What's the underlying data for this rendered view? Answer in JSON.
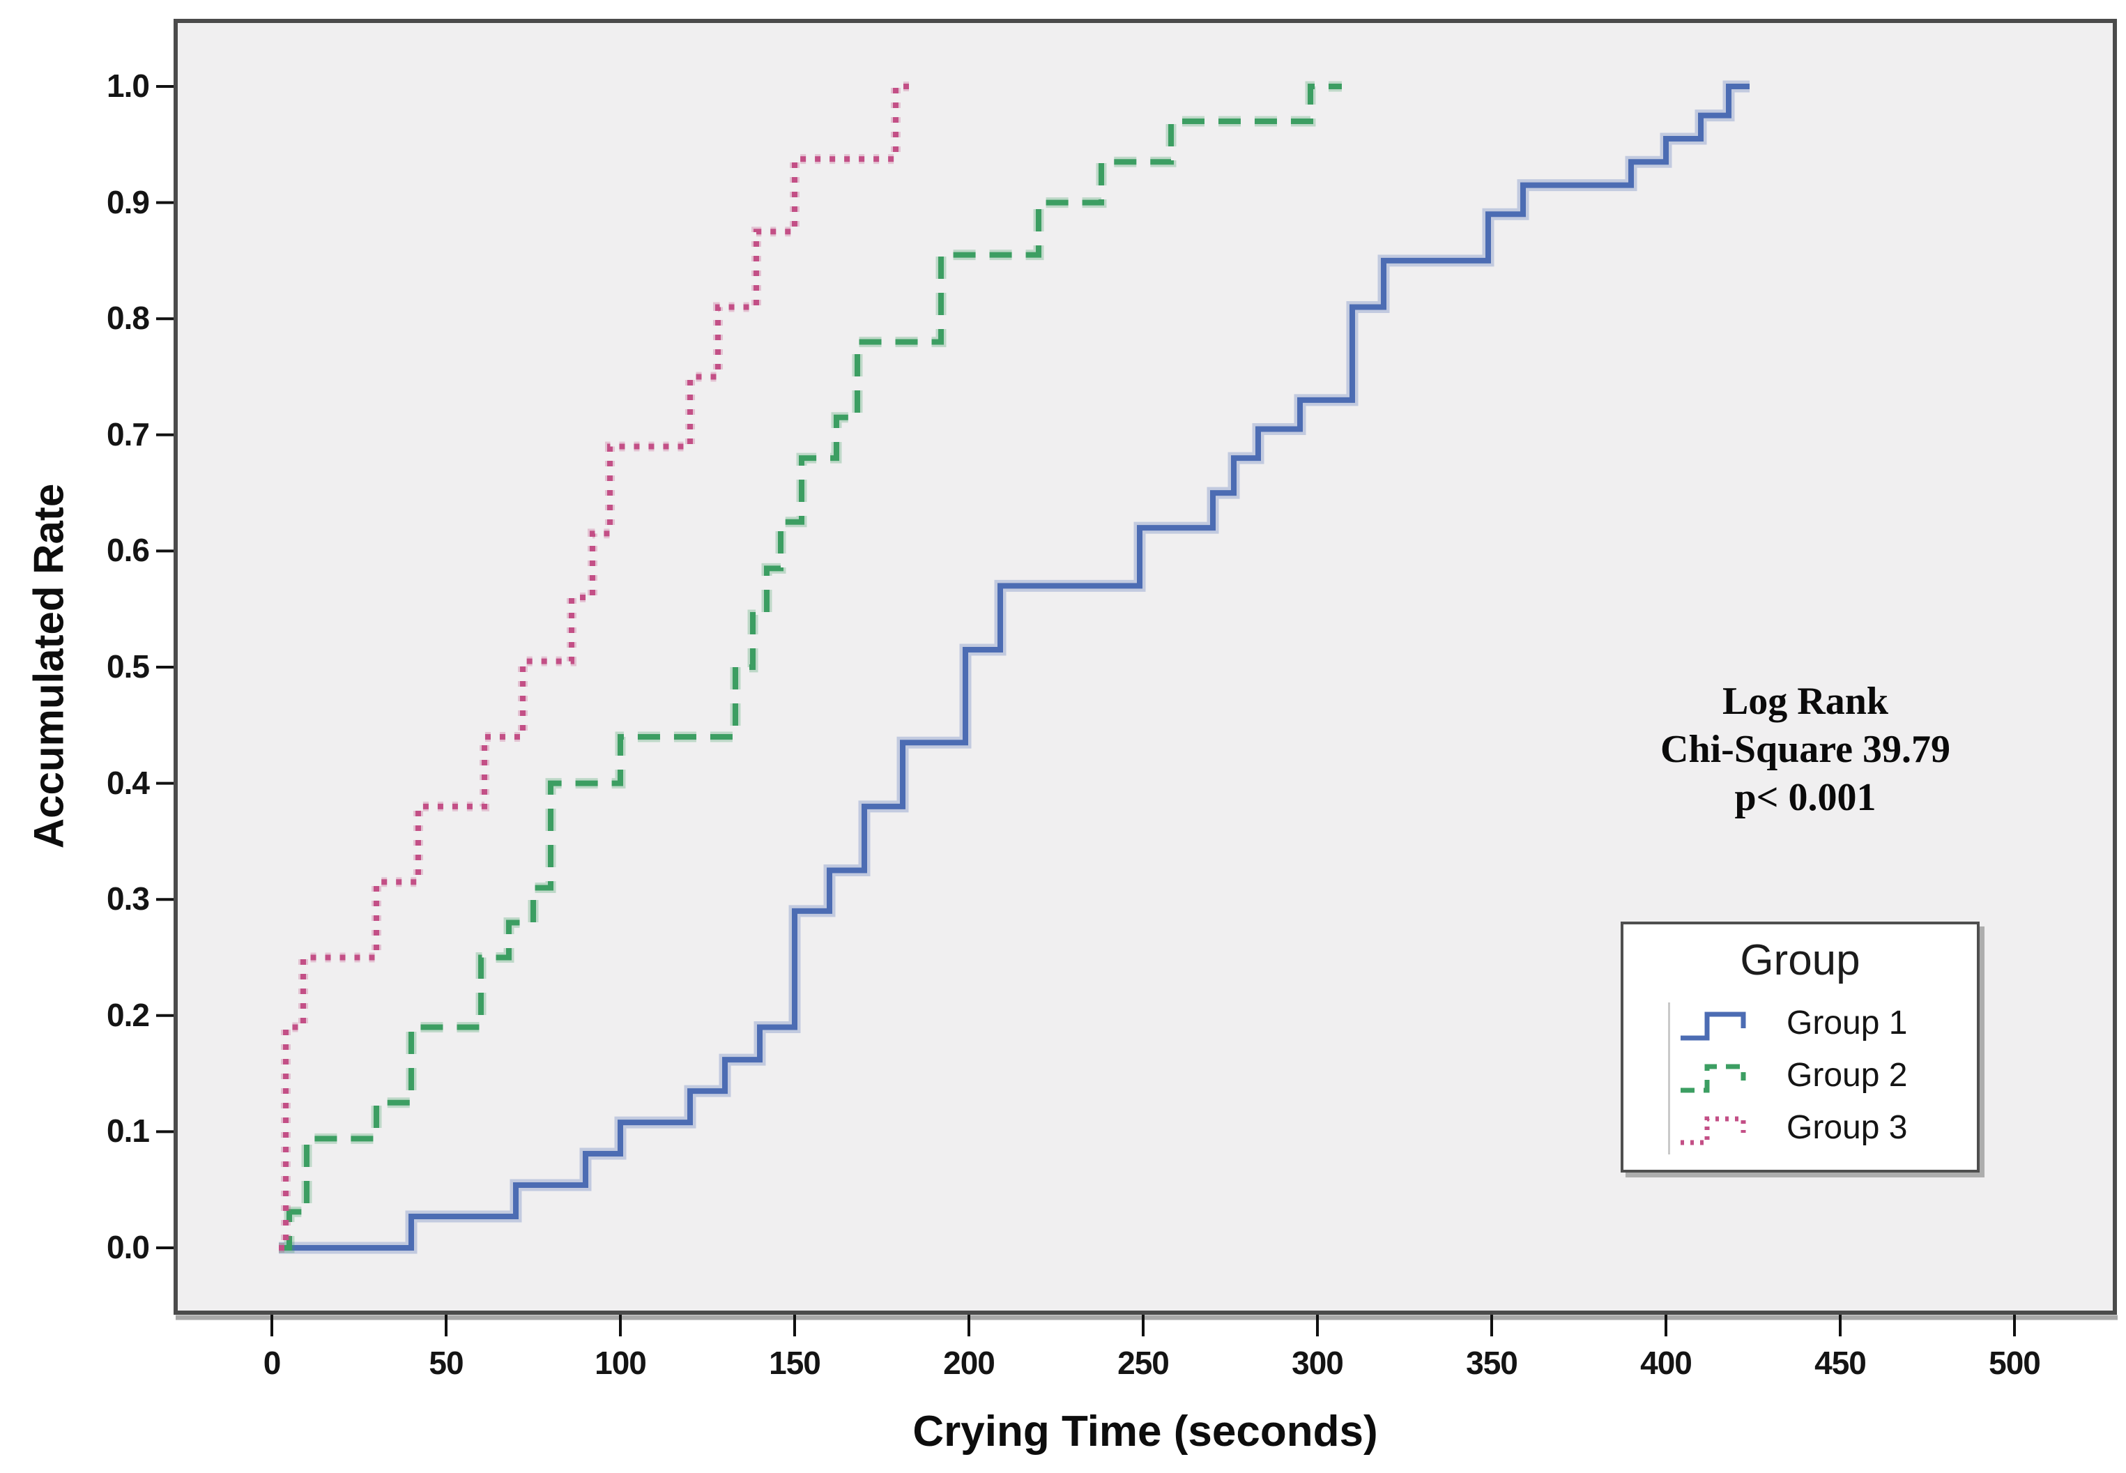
{
  "figure": {
    "x_axis_title": "Crying Time (seconds)",
    "y_axis_title": "Accumulated Rate",
    "plot_background": "#f0eff0",
    "frame_color": "#4b4b4b"
  },
  "annotation": {
    "line1": "Log Rank",
    "line2": "Chi-Square 39.79",
    "line3": "p< 0.001"
  },
  "legend": {
    "title": "Group",
    "items": [
      {
        "label": "Group 1",
        "color": "#4c6cb3",
        "style": "solid"
      },
      {
        "label": "Group 2",
        "color": "#3c9e62",
        "style": "dashed"
      },
      {
        "label": "Group 3",
        "color": "#c34f86",
        "style": "dotted"
      }
    ]
  },
  "chart_data": {
    "type": "step",
    "title": "",
    "xlabel": "Crying Time (seconds)",
    "ylabel": "Accumulated Rate",
    "xlim": [
      -28,
      529
    ],
    "ylim": [
      -0.056,
      1.056
    ],
    "x_ticks": [
      0,
      50,
      100,
      150,
      200,
      250,
      300,
      350,
      400,
      450,
      500
    ],
    "y_ticks": [
      "0.0",
      "0.1",
      "0.2",
      "0.3",
      "0.4",
      "0.5",
      "0.6",
      "0.7",
      "0.8",
      "0.9",
      "1.0"
    ],
    "grid": false,
    "legend_position": "lower-right-inside",
    "series": [
      {
        "name": "Group 1",
        "color": "#4c6cb3",
        "line_style": "solid",
        "start_x": 2,
        "end_x": 424,
        "points": [
          [
            40,
            0.027
          ],
          [
            70,
            0.054
          ],
          [
            90,
            0.081
          ],
          [
            100,
            0.108
          ],
          [
            120,
            0.135
          ],
          [
            130,
            0.162
          ],
          [
            140,
            0.19
          ],
          [
            150,
            0.29
          ],
          [
            160,
            0.325
          ],
          [
            170,
            0.38
          ],
          [
            181,
            0.435
          ],
          [
            199,
            0.515
          ],
          [
            209,
            0.57
          ],
          [
            249,
            0.62
          ],
          [
            270,
            0.65
          ],
          [
            276,
            0.68
          ],
          [
            283,
            0.705
          ],
          [
            295,
            0.73
          ],
          [
            310,
            0.81
          ],
          [
            319,
            0.85
          ],
          [
            349,
            0.89
          ],
          [
            359,
            0.915
          ],
          [
            390,
            0.935
          ],
          [
            400,
            0.955
          ],
          [
            410,
            0.975
          ],
          [
            418,
            1.0
          ]
        ]
      },
      {
        "name": "Group 2",
        "color": "#3c9e62",
        "line_style": "dashed",
        "start_x": 2,
        "end_x": 307,
        "points": [
          [
            5,
            0.031
          ],
          [
            10,
            0.094
          ],
          [
            30,
            0.125
          ],
          [
            40,
            0.19
          ],
          [
            60,
            0.25
          ],
          [
            68,
            0.28
          ],
          [
            75,
            0.31
          ],
          [
            80,
            0.4
          ],
          [
            100,
            0.44
          ],
          [
            133,
            0.5
          ],
          [
            138,
            0.545
          ],
          [
            142,
            0.585
          ],
          [
            146,
            0.625
          ],
          [
            152,
            0.68
          ],
          [
            162,
            0.715
          ],
          [
            168,
            0.78
          ],
          [
            192,
            0.855
          ],
          [
            220,
            0.9
          ],
          [
            238,
            0.935
          ],
          [
            258,
            0.97
          ],
          [
            298,
            1.0
          ]
        ]
      },
      {
        "name": "Group 3",
        "color": "#c34f86",
        "line_style": "dotted",
        "start_x": 2,
        "end_x": 183,
        "points": [
          [
            4,
            0.19
          ],
          [
            9,
            0.25
          ],
          [
            30,
            0.315
          ],
          [
            42,
            0.38
          ],
          [
            61,
            0.44
          ],
          [
            72,
            0.505
          ],
          [
            86,
            0.56
          ],
          [
            92,
            0.615
          ],
          [
            97,
            0.69
          ],
          [
            120,
            0.75
          ],
          [
            128,
            0.81
          ],
          [
            139,
            0.875
          ],
          [
            150,
            0.9375
          ],
          [
            179,
            1.0
          ]
        ]
      }
    ]
  }
}
